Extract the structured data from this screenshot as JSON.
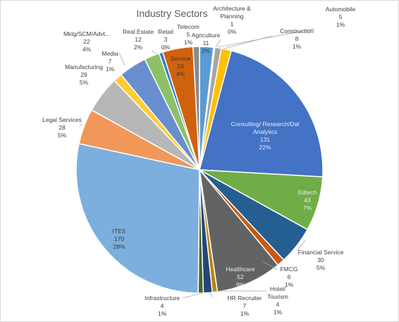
{
  "chart_data": {
    "type": "pie",
    "title": "Industry Sectors",
    "series": [
      {
        "name": "",
        "slices": [
          {
            "label": "Agriculture",
            "value": 11,
            "percent": "2%",
            "color": "#5b9bd5"
          },
          {
            "label": "Architecture & Planning",
            "value": 1,
            "percent": "0%",
            "color": "#ed7d31"
          },
          {
            "label": "Automobile",
            "value": 5,
            "percent": "1%",
            "color": "#a5a5a5"
          },
          {
            "label": "Construction",
            "value": 8,
            "percent": "1%",
            "color": "#ffc000"
          },
          {
            "label": "Consulting/ Research/Dat Analytics",
            "value": 131,
            "percent": "22%",
            "color": "#4472c4"
          },
          {
            "label": "Edtech",
            "value": 43,
            "percent": "7%",
            "color": "#70ad47"
          },
          {
            "label": "Financial Service",
            "value": 30,
            "percent": "5%",
            "color": "#255e91"
          },
          {
            "label": "FMCG",
            "value": 6,
            "percent": "1%",
            "color": "#c55a11"
          },
          {
            "label": "Healthcare",
            "value": 52,
            "percent": "9%",
            "color": "#636363"
          },
          {
            "label": "Hotel/ Tourism",
            "value": 4,
            "percent": "1%",
            "color": "#b8860b"
          },
          {
            "label": "HR Recruiter",
            "value": 7,
            "percent": "1%",
            "color": "#264478"
          },
          {
            "label": "Infrastructure",
            "value": 4,
            "percent": "1%",
            "color": "#43682b"
          },
          {
            "label": "ITES",
            "value": 170,
            "percent": "28%",
            "color": "#7cafdd"
          },
          {
            "label": "Legal Services",
            "value": 28,
            "percent": "5%",
            "color": "#f1975a"
          },
          {
            "label": "Manufacturing",
            "value": 29,
            "percent": "5%",
            "color": "#b7b7b7"
          },
          {
            "label": "Media",
            "value": 7,
            "percent": "1%",
            "color": "#ffcd33"
          },
          {
            "label": "Mktg/SCM/Advt...",
            "value": 22,
            "percent": "4%",
            "color": "#698ed0"
          },
          {
            "label": "Real Estate",
            "value": 12,
            "percent": "2%",
            "color": "#8cc168"
          },
          {
            "label": "Retail",
            "value": 3,
            "percent": "0%",
            "color": "#327dc2"
          },
          {
            "label": "Service",
            "value": 24,
            "percent": "4%",
            "color": "#d0620e"
          },
          {
            "label": "Telecom",
            "value": 5,
            "percent": "1%",
            "color": "#8a8a8a"
          }
        ]
      }
    ],
    "legend": "none",
    "data_labels": "category, value, percentage"
  }
}
